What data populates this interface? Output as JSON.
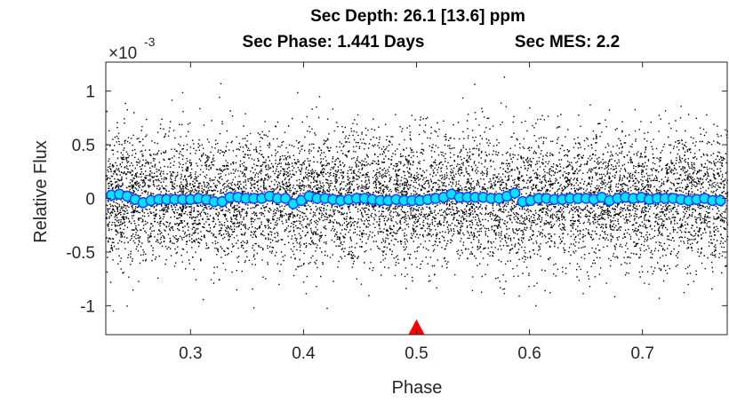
{
  "chart_data": {
    "type": "scatter",
    "title": [
      "Sec Depth: 26.1 [13.6] ppm",
      "Sec Phase: 1.441 Days",
      "Sec MES: 2.2"
    ],
    "xlabel": "Phase",
    "ylabel": "Relative Flux",
    "y_exponent_label": "×10",
    "y_exponent_power": "-3",
    "xlim": [
      0.225,
      0.775
    ],
    "ylim": [
      -1.27,
      1.27
    ],
    "x_ticks": [
      0.3,
      0.4,
      0.5,
      0.6,
      0.7
    ],
    "x_tick_labels": [
      "0.3",
      "0.4",
      "0.5",
      "0.6",
      "0.7"
    ],
    "y_ticks": [
      1,
      0.5,
      0,
      -0.5,
      -1
    ],
    "y_tick_labels": [
      "1",
      "0.5",
      "0",
      "-0.5",
      "-1"
    ],
    "grid": false,
    "series": [
      {
        "kind": "raw",
        "color": "#000000",
        "point_count": 9000,
        "scatter_std": 0.3,
        "x_range": [
          0.225,
          0.775
        ]
      },
      {
        "kind": "binned",
        "color": "#00e5ff",
        "edge_color": "#1f3fff",
        "x": [
          0.23,
          0.237,
          0.244,
          0.251,
          0.258,
          0.265,
          0.272,
          0.279,
          0.286,
          0.293,
          0.3,
          0.307,
          0.314,
          0.321,
          0.328,
          0.335,
          0.342,
          0.349,
          0.356,
          0.363,
          0.37,
          0.377,
          0.384,
          0.391,
          0.398,
          0.405,
          0.412,
          0.419,
          0.426,
          0.433,
          0.44,
          0.447,
          0.454,
          0.461,
          0.468,
          0.475,
          0.482,
          0.489,
          0.496,
          0.503,
          0.51,
          0.517,
          0.524,
          0.531,
          0.538,
          0.545,
          0.552,
          0.559,
          0.566,
          0.573,
          0.58,
          0.587,
          0.594,
          0.601,
          0.608,
          0.615,
          0.622,
          0.629,
          0.636,
          0.643,
          0.65,
          0.657,
          0.664,
          0.671,
          0.678,
          0.685,
          0.692,
          0.699,
          0.706,
          0.713,
          0.72,
          0.727,
          0.734,
          0.741,
          0.748,
          0.755,
          0.762,
          0.769
        ],
        "values": [
          0.03,
          0.04,
          0.02,
          -0.01,
          -0.04,
          -0.02,
          -0.01,
          -0.01,
          -0.01,
          -0.01,
          -0.01,
          0.0,
          -0.01,
          -0.03,
          -0.03,
          0.01,
          0.01,
          0.0,
          0.0,
          0.0,
          0.02,
          0.0,
          0.0,
          -0.05,
          -0.02,
          0.02,
          0.0,
          0.0,
          -0.01,
          -0.02,
          -0.01,
          0.0,
          0.0,
          -0.01,
          -0.02,
          -0.02,
          -0.01,
          -0.02,
          -0.02,
          -0.02,
          -0.01,
          0.0,
          0.01,
          0.04,
          0.01,
          0.01,
          0.01,
          0.01,
          0.0,
          0.0,
          0.02,
          0.05,
          -0.03,
          -0.02,
          0.0,
          0.0,
          -0.01,
          -0.01,
          0.0,
          0.0,
          0.0,
          -0.01,
          0.01,
          -0.02,
          0.0,
          0.01,
          0.0,
          0.01,
          -0.01,
          0.0,
          0.0,
          0.0,
          -0.01,
          -0.02,
          -0.01,
          0.0,
          -0.02,
          -0.02
        ]
      }
    ],
    "marker": {
      "kind": "triangle",
      "x": 0.5,
      "y": -1.21,
      "color": "#ff0000"
    }
  }
}
